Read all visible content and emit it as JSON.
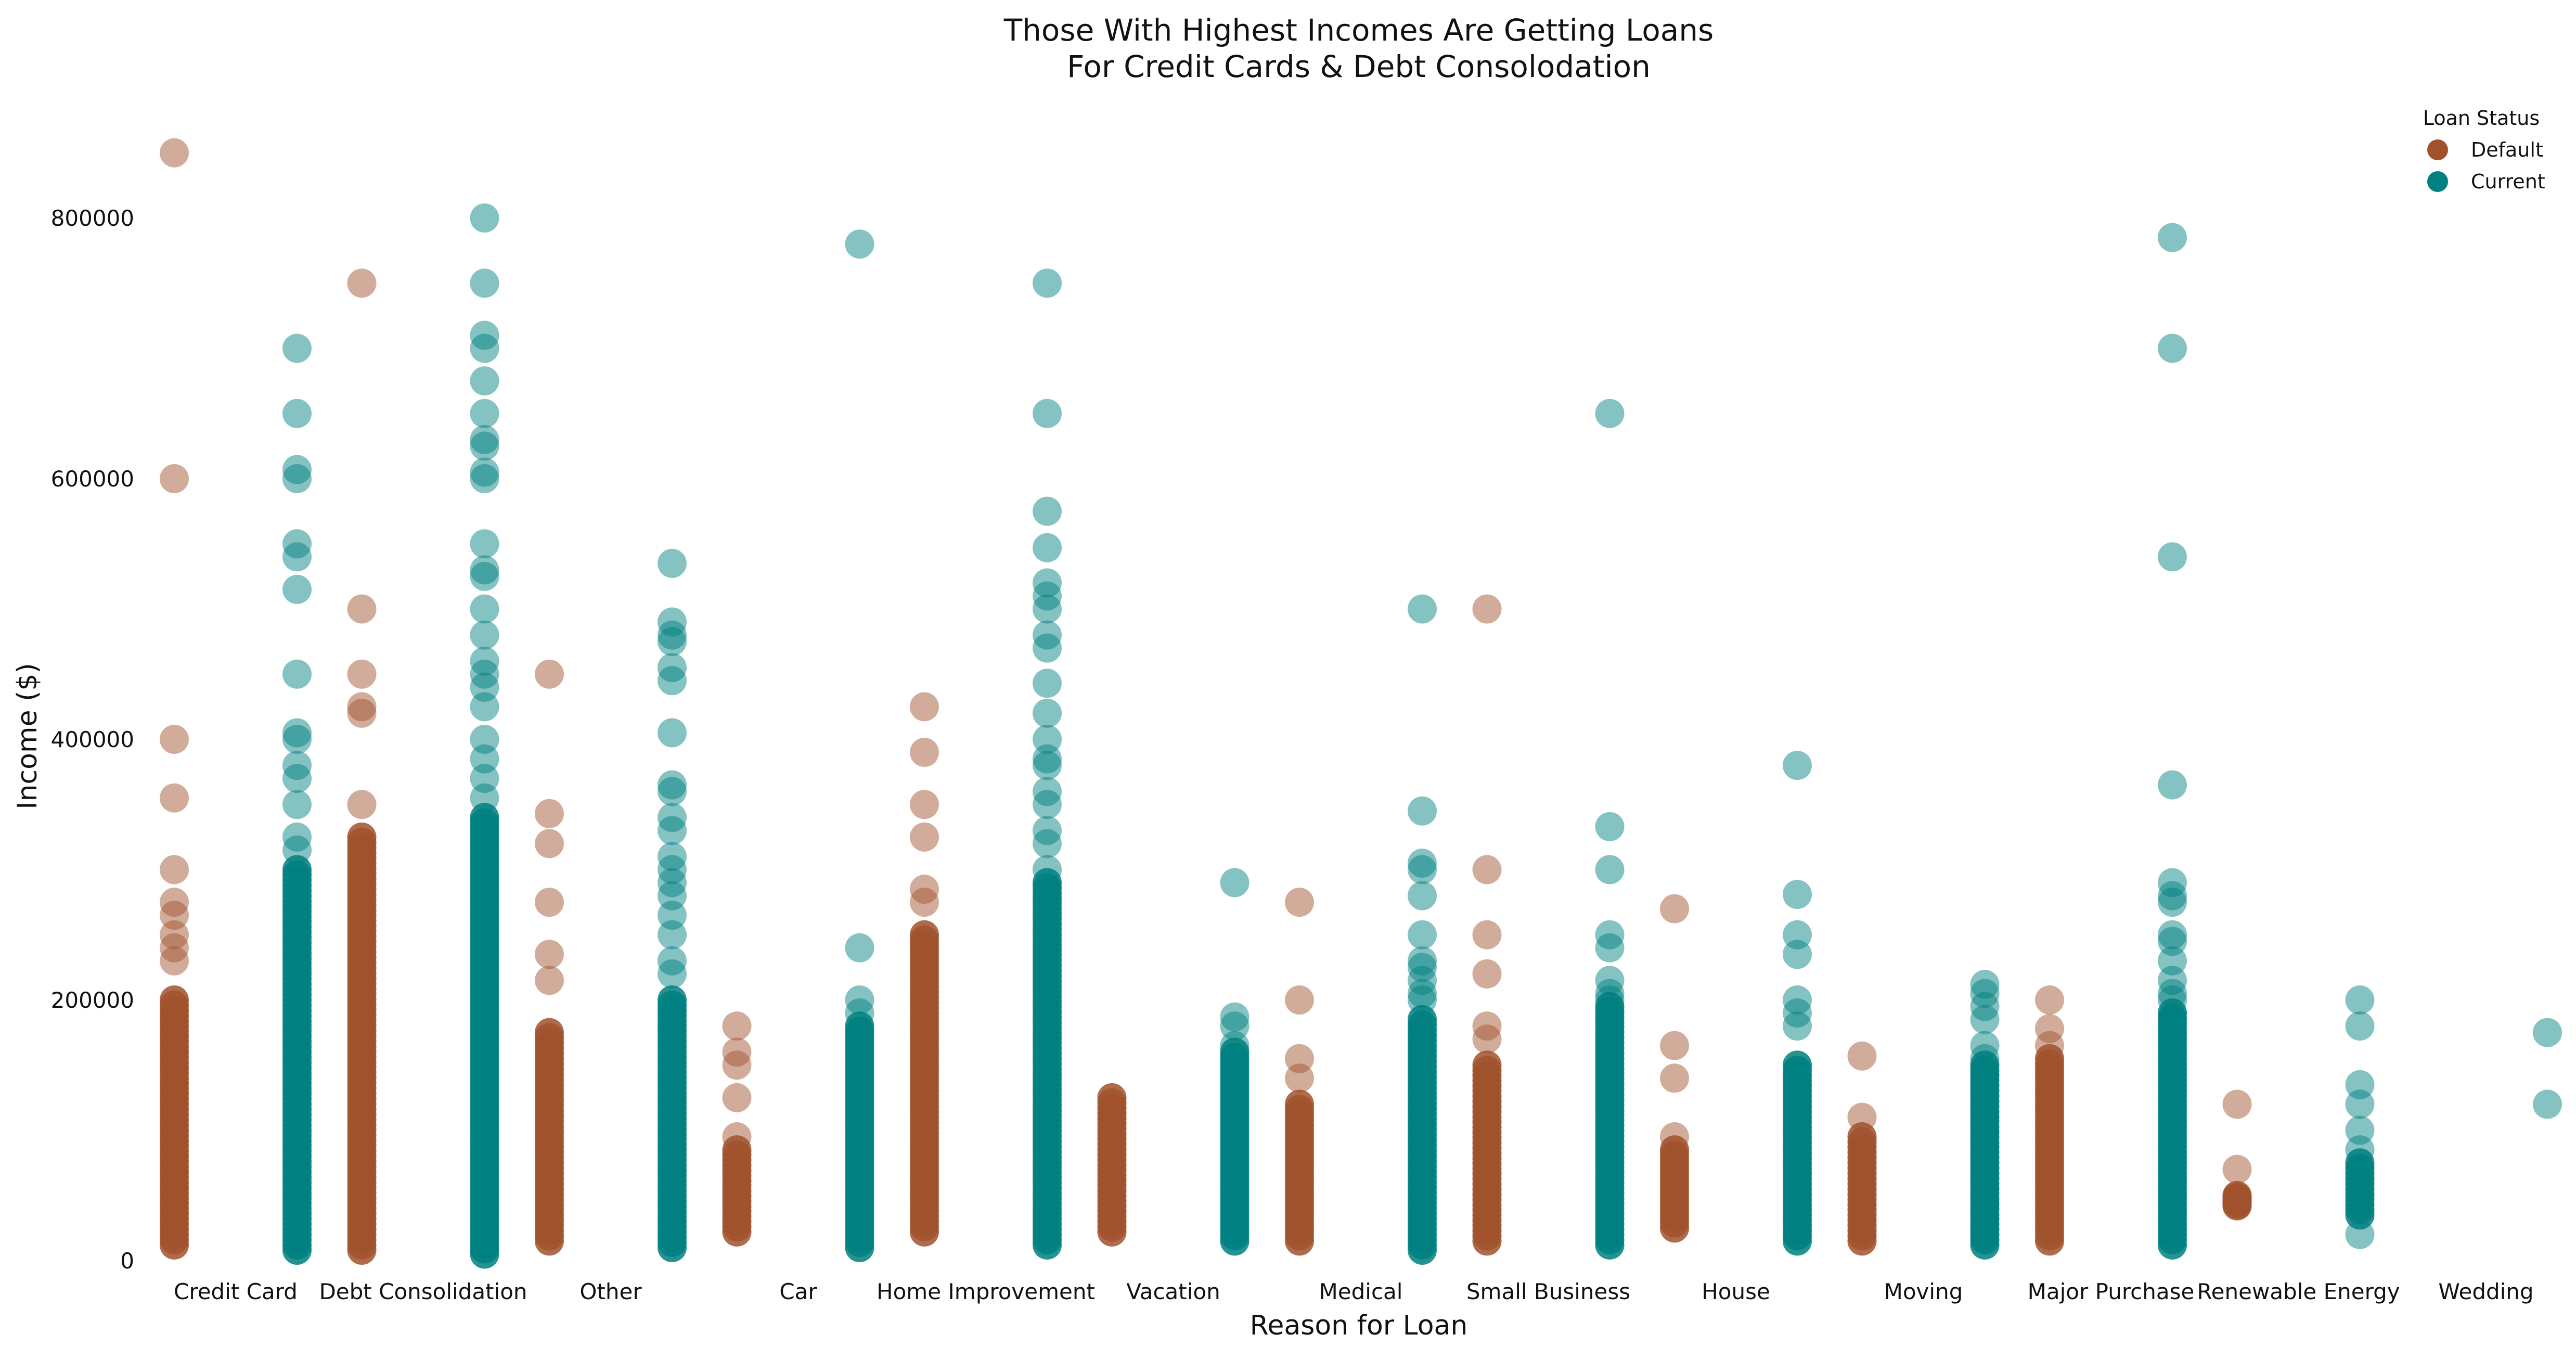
{
  "chart_data": {
    "type": "scatter",
    "title_lines": [
      "Those With Highest Incomes Are Getting Loans",
      "For Credit Cards & Debt Consolodation"
    ],
    "xlabel": "Reason for Loan",
    "ylabel": "Income ($)",
    "ylim": [
      0,
      870000
    ],
    "y_ticks": [
      0,
      200000,
      400000,
      600000,
      800000
    ],
    "grid": false,
    "legend": {
      "title": "Loan Status",
      "placement": "top-right",
      "entries": [
        {
          "name": "Default",
          "color": "#a0522d"
        },
        {
          "name": "Current",
          "color": "#008080"
        }
      ]
    },
    "categories": [
      "Credit Card",
      "Debt Consolidation",
      "Other",
      "Car",
      "Home Improvement",
      "Vacation",
      "Medical",
      "Small Business",
      "House",
      "Moving",
      "Major Purchase",
      "Renewable Energy",
      "Wedding"
    ],
    "series": [
      {
        "name": "Default",
        "color": "#a0522d",
        "points_by_category": [
          {
            "outliers": [
              850000,
              600000,
              400000,
              355000,
              300000,
              275000,
              265000,
              250000,
              240000,
              230000
            ],
            "range": [
              12000,
              200000
            ]
          },
          {
            "outliers": [
              750000,
              500000,
              450000,
              425000,
              420000,
              350000
            ],
            "range": [
              8000,
              325000
            ]
          },
          {
            "outliers": [
              450000,
              343000,
              320000,
              275000,
              235000,
              215000
            ],
            "range": [
              15000,
              175000
            ]
          },
          {
            "outliers": [
              180000,
              160000,
              150000,
              125000,
              95000
            ],
            "range": [
              22000,
              85000
            ]
          },
          {
            "outliers": [
              425000,
              390000,
              350000,
              325000,
              285000,
              275000
            ],
            "range": [
              22000,
              250000
            ]
          },
          {
            "outliers": [],
            "range": [
              22000,
              125000
            ]
          },
          {
            "outliers": [
              275000,
              200000,
              155000,
              140000
            ],
            "range": [
              15000,
              120000
            ]
          },
          {
            "outliers": [
              500000,
              300000,
              250000,
              220000,
              180000,
              170000
            ],
            "range": [
              15000,
              150000
            ]
          },
          {
            "outliers": [
              270000,
              165000,
              140000,
              95000
            ],
            "range": [
              25000,
              85000
            ]
          },
          {
            "outliers": [
              157000,
              110000
            ],
            "range": [
              15000,
              95000
            ]
          },
          {
            "outliers": [
              200000,
              178000,
              165000
            ],
            "range": [
              15000,
              155000
            ]
          },
          {
            "outliers": [
              120000,
              70000
            ],
            "range": [
              42000,
              50000
            ]
          },
          {
            "outliers": [],
            "range": null
          }
        ]
      },
      {
        "name": "Current",
        "color": "#008080",
        "points_by_category": [
          {
            "outliers": [
              700000,
              650000,
              607000,
              600000,
              550000,
              540000,
              515000,
              450000,
              405000,
              400000,
              380000,
              370000,
              350000,
              325000,
              315000
            ],
            "range": [
              8000,
              300000
            ]
          },
          {
            "outliers": [
              800000,
              750000,
              710000,
              700000,
              675000,
              650000,
              630000,
              625000,
              605000,
              600000,
              550000,
              530000,
              525000,
              500000,
              480000,
              460000,
              450000,
              440000,
              425000,
              400000,
              385000,
              370000,
              355000
            ],
            "range": [
              5000,
              340000
            ]
          },
          {
            "outliers": [
              535000,
              490000,
              480000,
              475000,
              455000,
              445000,
              405000,
              365000,
              360000,
              340000,
              330000,
              310000,
              300000,
              290000,
              280000,
              265000,
              250000,
              230000,
              220000
            ],
            "range": [
              10000,
              200000
            ]
          },
          {
            "outliers": [
              780000,
              240000,
              200000,
              190000
            ],
            "range": [
              10000,
              180000
            ]
          },
          {
            "outliers": [
              750000,
              650000,
              575000,
              547000,
              520000,
              510000,
              500000,
              480000,
              470000,
              443000,
              420000,
              400000,
              385000,
              380000,
              360000,
              350000,
              330000,
              320000,
              300000
            ],
            "range": [
              12000,
              290000
            ]
          },
          {
            "outliers": [
              290000,
              187000,
              180000,
              165000
            ],
            "range": [
              15000,
              160000
            ]
          },
          {
            "outliers": [
              500000,
              345000,
              305000,
              300000,
              280000,
              250000,
              230000,
              225000,
              215000,
              205000,
              200000
            ],
            "range": [
              8000,
              185000
            ]
          },
          {
            "outliers": [
              650000,
              333000,
              300000,
              250000,
              240000,
              215000,
              205000,
              200000
            ],
            "range": [
              12000,
              195000
            ]
          },
          {
            "outliers": [
              380000,
              281000,
              250000,
              235000,
              200000,
              190000,
              180000
            ],
            "range": [
              15000,
              150000
            ]
          },
          {
            "outliers": [
              212000,
              205000,
              195000,
              185000,
              165000,
              155000
            ],
            "range": [
              12000,
              150000
            ]
          },
          {
            "outliers": [
              785000,
              700000,
              540000,
              365000,
              290000,
              280000,
              275000,
              250000,
              245000,
              230000,
              215000,
              205000,
              200000
            ],
            "range": [
              12000,
              190000
            ]
          },
          {
            "outliers": [
              200000,
              180000,
              135000,
              120000,
              100000,
              85000,
              20000
            ],
            "range": [
              35000,
              75000
            ]
          },
          {
            "outliers": [
              175000,
              120000
            ],
            "range": null
          }
        ]
      }
    ]
  }
}
